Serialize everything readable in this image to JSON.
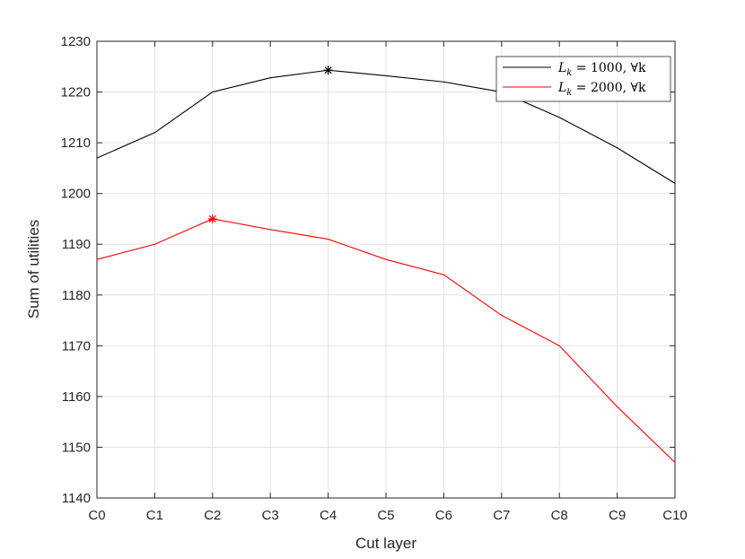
{
  "chart_data": {
    "type": "line",
    "xlabel": "Cut layer",
    "ylabel": "Sum of utilities",
    "categories": [
      "C0",
      "C1",
      "C2",
      "C3",
      "C4",
      "C5",
      "C6",
      "C7",
      "C8",
      "C9",
      "C10"
    ],
    "ylim": [
      1140,
      1230
    ],
    "yticks": [
      1140,
      1150,
      1160,
      1170,
      1180,
      1190,
      1200,
      1210,
      1220,
      1230
    ],
    "grid": true,
    "legend_position": "top-right",
    "series": [
      {
        "name": "L_k = 1000, ∀k",
        "color": "#000000",
        "values": [
          1207,
          1212,
          1220,
          1222.8,
          1224.3,
          1223.2,
          1222,
          1220,
          1215,
          1209,
          1202
        ],
        "max_marker_index": 4
      },
      {
        "name": "L_k = 2000, ∀k",
        "color": "#ff0000",
        "values": [
          1187,
          1190,
          1195,
          1192.9,
          1191,
          1187,
          1184,
          1176,
          1170,
          1158,
          1147
        ],
        "max_marker_index": 2
      }
    ]
  }
}
